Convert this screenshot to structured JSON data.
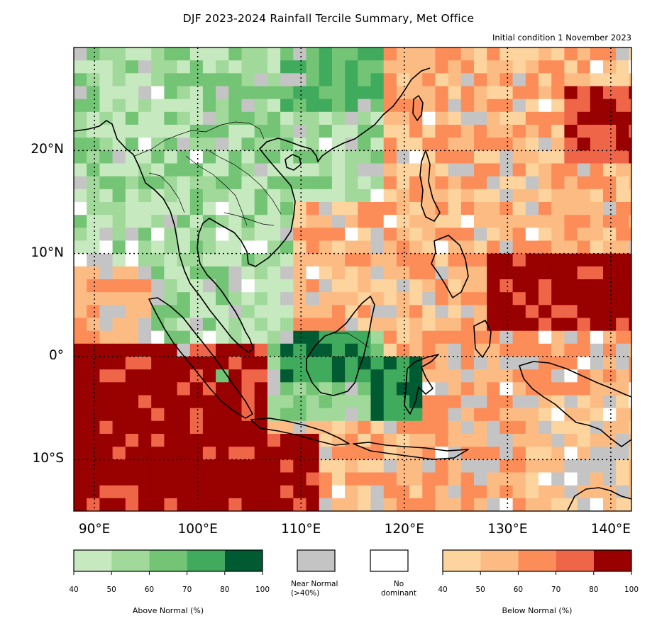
{
  "title": "DJF 2023-2024 Rainfall Tercile Summary, Met Office",
  "subtitle": "Initial condition 1 November 2023",
  "map": {
    "lon_range": [
      88,
      142
    ],
    "lat_range": [
      -15,
      30
    ],
    "lat_labels": [
      {
        "lat": 20,
        "label": "20°N"
      },
      {
        "lat": 10,
        "label": "10°N"
      },
      {
        "lat": 0,
        "label": "0°"
      },
      {
        "lat": -10,
        "label": "10°S"
      }
    ],
    "lon_labels": [
      {
        "lon": 90,
        "label": "90°E"
      },
      {
        "lon": 100,
        "label": "100°E"
      },
      {
        "lon": 110,
        "label": "110°E"
      },
      {
        "lon": 120,
        "label": "120°E"
      },
      {
        "lon": 130,
        "label": "130°E"
      },
      {
        "lon": 140,
        "label": "140°E"
      }
    ],
    "gridlines": "dotted"
  },
  "legend": {
    "above_normal": {
      "title": "Above Normal (%)",
      "ticks": [
        "40",
        "50",
        "60",
        "70",
        "80",
        "100"
      ],
      "colors": [
        "#c7e9c0",
        "#a1d99b",
        "#74c476",
        "#41ab5d",
        "#005a32"
      ]
    },
    "near_normal": {
      "label_line1": "Near Normal",
      "label_line2": "(>40%)",
      "color": "#c4c4c4"
    },
    "no_dominant": {
      "label_line1": "No",
      "label_line2": "dominant",
      "color": "#ffffff"
    },
    "below_normal": {
      "title": "Below Normal (%)",
      "ticks": [
        "40",
        "50",
        "60",
        "70",
        "80",
        "100"
      ],
      "colors": [
        "#fdd49e",
        "#fdbb84",
        "#fc8d59",
        "#ef6548",
        "#990000"
      ]
    }
  }
}
